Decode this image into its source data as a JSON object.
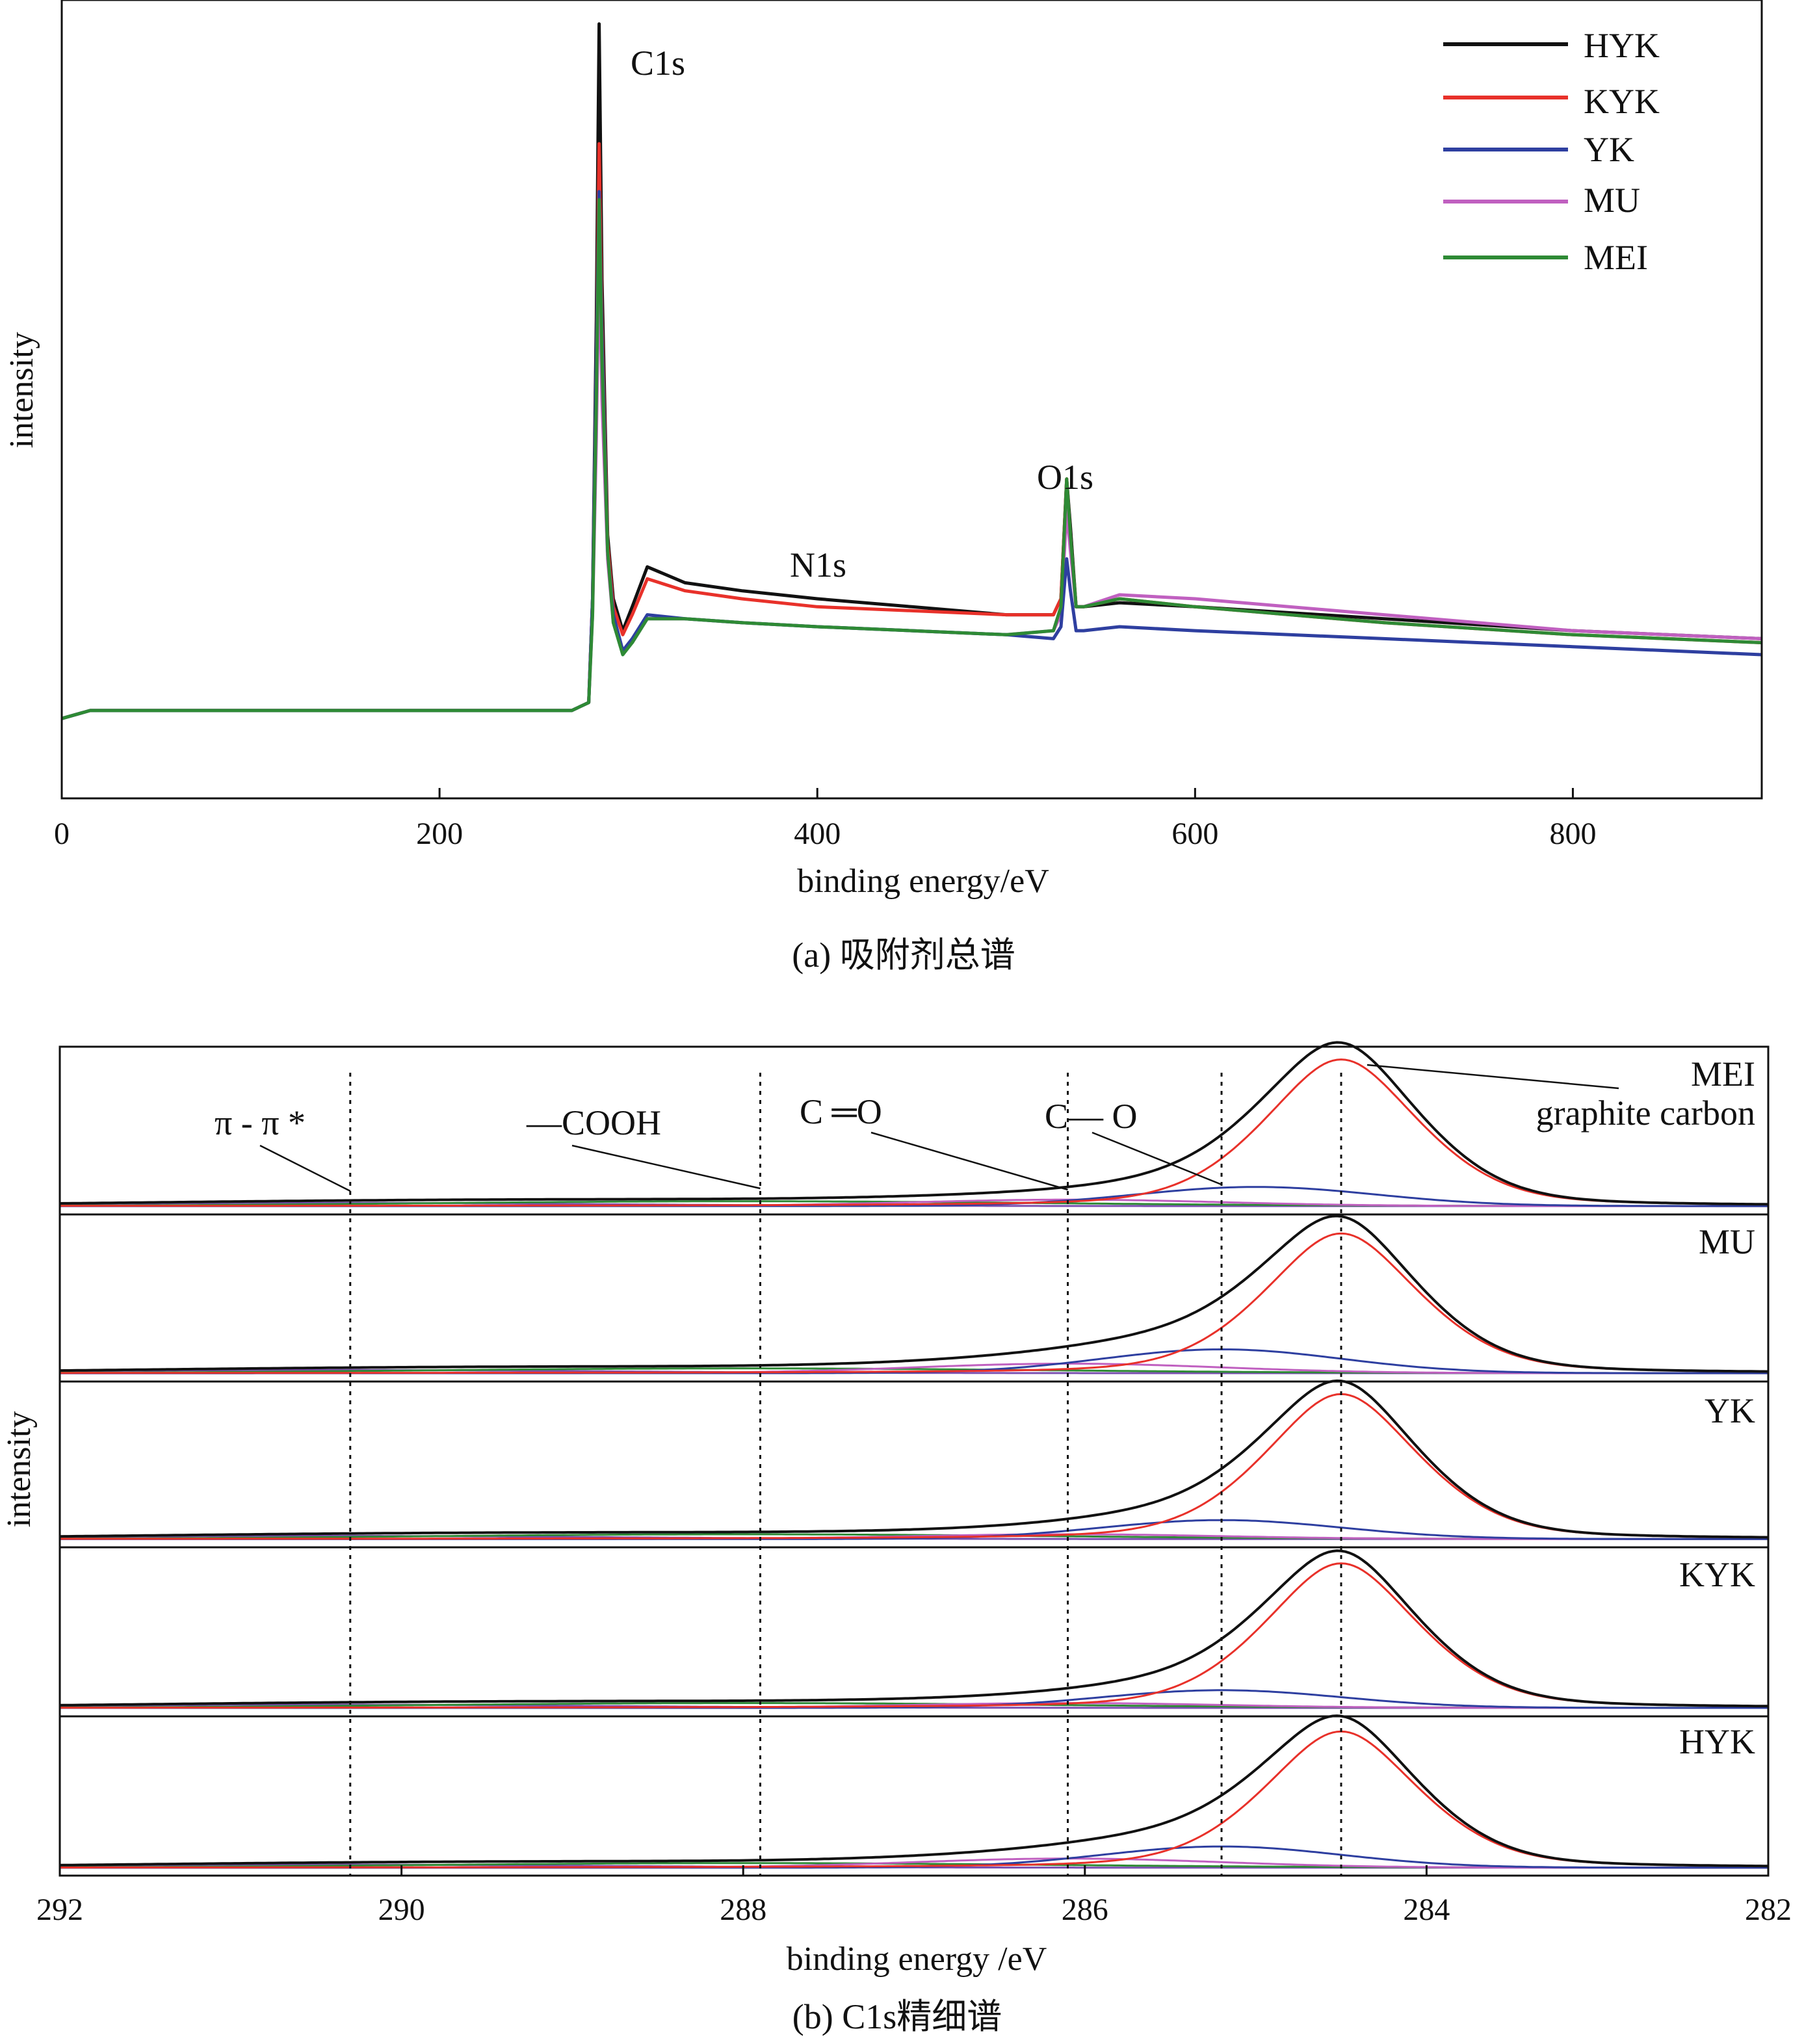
{
  "chart_data": [
    {
      "type": "line",
      "caption": "(a) 吸附剂总谱",
      "xlabel": "binding energy/eV",
      "ylabel": "intensity",
      "xlim": [
        0,
        900
      ],
      "xticks": [
        0,
        200,
        400,
        600,
        800
      ],
      "ylim": [
        0,
        100
      ],
      "legend_position": "top-right",
      "series_order": [
        "HYK",
        "KYK",
        "YK",
        "MU",
        "MEI"
      ],
      "colors": {
        "HYK": "#111111",
        "KYK": "#e8312a",
        "YK": "#2e3fa0",
        "MU": "#c060c0",
        "MEI": "#2e8a35"
      },
      "peak_labels": [
        {
          "text": "C1s",
          "x": 285,
          "y": 95
        },
        {
          "text": "N1s",
          "x": 399,
          "y": 30
        },
        {
          "text": "O1s",
          "x": 532,
          "y": 40
        }
      ],
      "series": [
        {
          "name": "HYK",
          "x": [
            0,
            15,
            100,
            270,
            279,
            281,
            283,
            284.5,
            286,
            289,
            292,
            297,
            302,
            310,
            330,
            360,
            400,
            450,
            500,
            525,
            529,
            532,
            534,
            537,
            541,
            560,
            600,
            700,
            800,
            900
          ],
          "y": [
            10,
            11,
            11,
            11,
            12,
            25,
            60,
            97,
            65,
            33,
            25,
            21,
            24,
            29,
            27,
            26,
            25,
            24,
            23,
            23,
            25,
            40,
            34,
            24,
            24,
            24.5,
            24,
            22.5,
            21,
            20
          ]
        },
        {
          "name": "KYK",
          "x": [
            0,
            15,
            100,
            270,
            279,
            281,
            283,
            284.5,
            286,
            289,
            292,
            297,
            302,
            310,
            330,
            360,
            400,
            450,
            500,
            525,
            529,
            532,
            534,
            537,
            541,
            560,
            600,
            700,
            800,
            900
          ],
          "y": [
            10,
            11,
            11,
            11,
            12,
            25,
            55,
            82,
            60,
            32,
            24,
            20.5,
            23,
            27.5,
            26,
            25,
            24,
            23.5,
            23,
            23,
            25,
            40,
            33,
            24,
            24,
            25,
            24,
            22,
            20.5,
            19.5
          ]
        },
        {
          "name": "YK",
          "x": [
            0,
            15,
            100,
            270,
            279,
            281,
            283,
            284.5,
            286,
            289,
            292,
            297,
            302,
            310,
            330,
            360,
            400,
            450,
            500,
            525,
            529,
            532,
            534,
            537,
            541,
            560,
            600,
            700,
            800,
            900
          ],
          "y": [
            10,
            11,
            11,
            11,
            12,
            25,
            55,
            76,
            58,
            31,
            23,
            18.5,
            20,
            23,
            22.5,
            22,
            21.5,
            21,
            20.5,
            20,
            21.5,
            30,
            26,
            21,
            21,
            21.5,
            21,
            20,
            19,
            18
          ]
        },
        {
          "name": "MU",
          "x": [
            0,
            15,
            100,
            270,
            279,
            281,
            283,
            284.5,
            286,
            289,
            292,
            297,
            302,
            310,
            330,
            360,
            400,
            450,
            500,
            525,
            529,
            532,
            534,
            537,
            541,
            560,
            600,
            700,
            800,
            900
          ],
          "y": [
            10,
            11,
            11,
            11,
            12,
            23,
            45,
            68,
            50,
            30,
            22,
            18.5,
            19.5,
            22.5,
            22.5,
            22,
            21.5,
            21,
            20.5,
            21,
            23,
            36,
            31,
            24,
            24,
            25.5,
            25,
            23,
            21,
            20
          ]
        },
        {
          "name": "MEI",
          "x": [
            0,
            15,
            100,
            270,
            279,
            281,
            283,
            284.5,
            286,
            289,
            292,
            297,
            302,
            310,
            330,
            360,
            400,
            450,
            500,
            525,
            529,
            532,
            534,
            537,
            541,
            560,
            600,
            700,
            800,
            900
          ],
          "y": [
            10,
            11,
            11,
            11,
            12,
            23,
            50,
            75,
            55,
            31,
            22,
            18,
            19.5,
            22.5,
            22.5,
            22,
            21.5,
            21,
            20.5,
            21,
            24,
            40,
            33,
            24,
            24,
            25,
            24,
            22,
            20.5,
            19.5
          ]
        }
      ]
    },
    {
      "type": "line",
      "caption": "(b) C1s精细谱",
      "xlabel": "binding energy /eV",
      "ylabel": "intensity",
      "xlim": [
        292,
        282
      ],
      "xticks": [
        292,
        290,
        288,
        286,
        284,
        282
      ],
      "reference_lines": [
        290.3,
        287.9,
        286.1,
        285.2,
        284.5
      ],
      "annotations": [
        {
          "text": "π - π *",
          "x": 290.3
        },
        {
          "text": "—COOH",
          "x": 287.9
        },
        {
          "text": "C ═O",
          "x": 286.1
        },
        {
          "text": "C— O",
          "x": 285.2
        },
        {
          "text": "graphite carbon",
          "x": 284.5
        }
      ],
      "component_colors": {
        "envelope": "#111111",
        "graphite": "#e8312a",
        "C-O": "#2e3fa0",
        "C=O": "#c060c0",
        "COOH": "#2e8a35",
        "pi": "#7a4fb0"
      },
      "panels": [
        {
          "name": "MEI",
          "peak_center": 284.5,
          "graphite_height": 0.92,
          "CO_height": 0.12,
          "CO_center": 285.0,
          "CdO_height": 0.04,
          "COOH_height": 0.03,
          "pi_height": 0.02
        },
        {
          "name": "MU",
          "peak_center": 284.5,
          "graphite_height": 0.88,
          "CO_height": 0.15,
          "CO_center": 285.2,
          "CdO_height": 0.06,
          "COOH_height": 0.03,
          "pi_height": 0.02
        },
        {
          "name": "YK",
          "peak_center": 284.5,
          "graphite_height": 0.92,
          "CO_height": 0.12,
          "CO_center": 285.2,
          "CdO_height": 0.03,
          "COOH_height": 0.03,
          "pi_height": 0.02
        },
        {
          "name": "KYK",
          "peak_center": 284.5,
          "graphite_height": 0.9,
          "CO_height": 0.11,
          "CO_center": 285.2,
          "CdO_height": 0.03,
          "COOH_height": 0.03,
          "pi_height": 0.02
        },
        {
          "name": "HYK",
          "peak_center": 284.5,
          "graphite_height": 0.9,
          "CO_height": 0.14,
          "CO_center": 285.2,
          "CdO_height": 0.06,
          "COOH_height": 0.03,
          "pi_height": 0.02
        }
      ]
    }
  ]
}
